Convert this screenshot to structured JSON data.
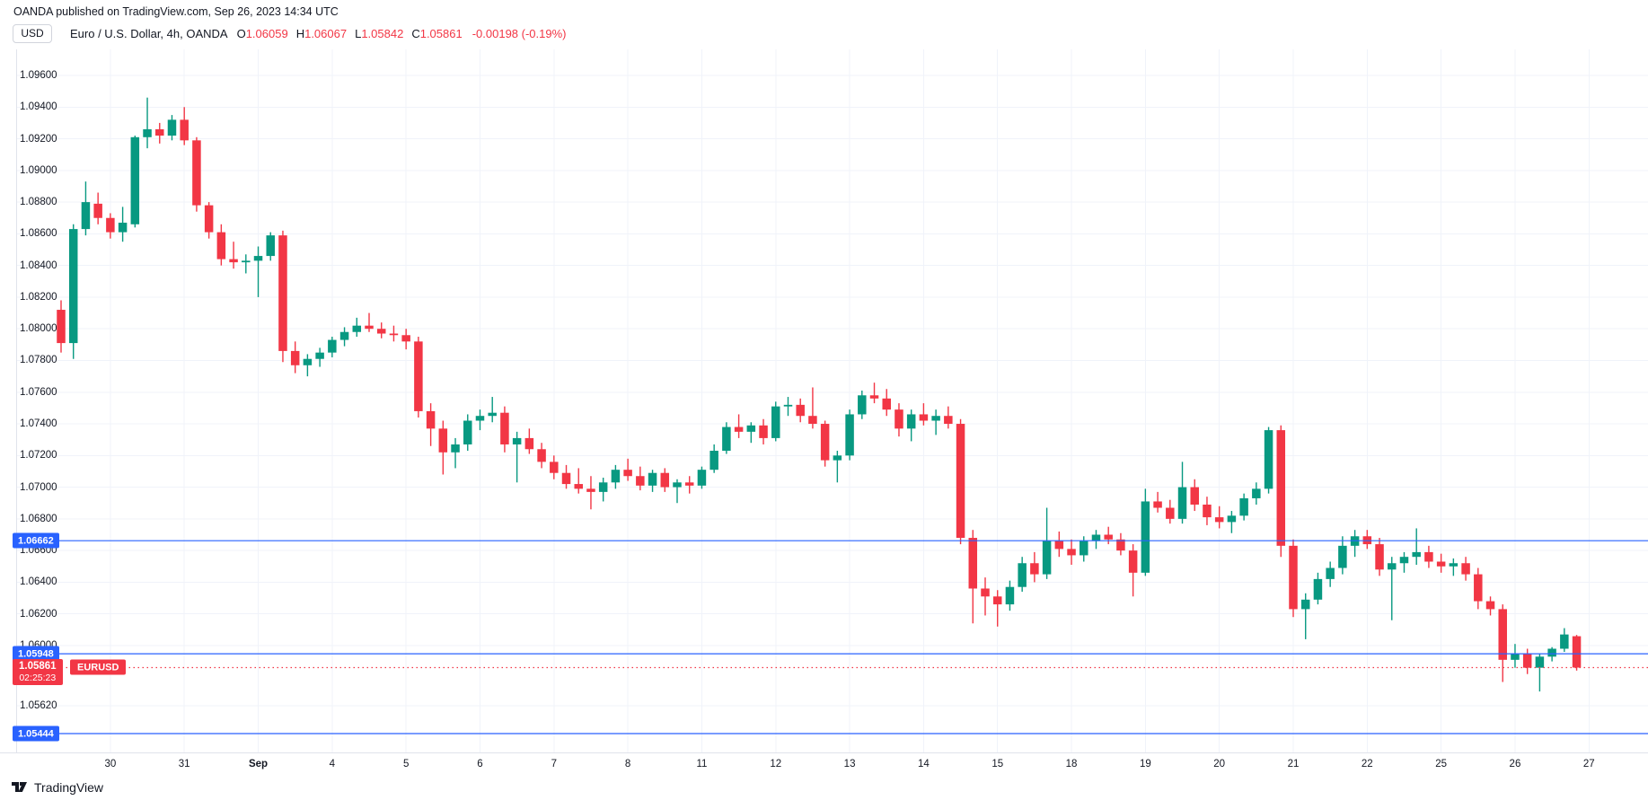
{
  "header": {
    "publisher_note": "OANDA published on TradingView.com, Sep 26, 2023 14:34 UTC"
  },
  "legend": {
    "currency_button": "USD",
    "title": "Euro / U.S. Dollar, 4h, OANDA",
    "ohlc": [
      {
        "k": "O",
        "v": "1.06059"
      },
      {
        "k": "H",
        "v": "1.06067"
      },
      {
        "k": "L",
        "v": "1.05842"
      },
      {
        "k": "C",
        "v": "1.05861"
      }
    ],
    "change": "-0.00198 (-0.19%)"
  },
  "colors": {
    "up": "#089981",
    "down": "#f23645",
    "level_line": "#2962ff",
    "last_price": "#f23645",
    "grid": "#f0f3fa",
    "separator": "#e0e3eb",
    "text": "#131722"
  },
  "price_scale": {
    "ticks": [
      "1.09600",
      "1.09400",
      "1.09200",
      "1.09000",
      "1.08800",
      "1.08600",
      "1.08400",
      "1.08200",
      "1.08000",
      "1.07800",
      "1.07600",
      "1.07400",
      "1.07200",
      "1.07000",
      "1.06800",
      "1.06600",
      "1.06400",
      "1.06200",
      "1.06000",
      "1.05620"
    ]
  },
  "time_scale": {
    "labels": [
      {
        "text": "30",
        "index": 4
      },
      {
        "text": "31",
        "index": 10
      },
      {
        "text": "Sep",
        "index": 16,
        "bold": true
      },
      {
        "text": "4",
        "index": 22
      },
      {
        "text": "5",
        "index": 28
      },
      {
        "text": "6",
        "index": 34
      },
      {
        "text": "7",
        "index": 40
      },
      {
        "text": "8",
        "index": 46
      },
      {
        "text": "11",
        "index": 52
      },
      {
        "text": "12",
        "index": 58
      },
      {
        "text": "13",
        "index": 64
      },
      {
        "text": "14",
        "index": 70
      },
      {
        "text": "15",
        "index": 76
      },
      {
        "text": "18",
        "index": 82
      },
      {
        "text": "19",
        "index": 88
      },
      {
        "text": "20",
        "index": 94
      },
      {
        "text": "21",
        "index": 100
      },
      {
        "text": "22",
        "index": 106
      },
      {
        "text": "25",
        "index": 112
      },
      {
        "text": "26",
        "index": 118
      },
      {
        "text": "27",
        "index": 124
      }
    ]
  },
  "levels": {
    "blue_lines": [
      {
        "price": 1.06662,
        "label": "1.06662"
      },
      {
        "price": 1.05948,
        "label": "1.05948"
      },
      {
        "price": 1.05444,
        "label": "1.05444"
      }
    ],
    "last_price": {
      "price": 1.05861,
      "label": "1.05861",
      "countdown": "02:25:23",
      "symbol_tag": "EURUSD"
    }
  },
  "chart_data": {
    "type": "candlestick",
    "symbol": "EURUSD",
    "title": "Euro / U.S. Dollar",
    "timeframe": "4h",
    "exchange": "OANDA",
    "ylim": [
      1.0532,
      1.0974
    ],
    "grid": true,
    "candles_ohlc": [
      [
        1.0812,
        1.0818,
        1.0785,
        1.0791
      ],
      [
        1.0791,
        1.0866,
        1.0781,
        1.0863
      ],
      [
        1.0863,
        1.0893,
        1.0859,
        1.088
      ],
      [
        1.0879,
        1.0886,
        1.0866,
        1.087
      ],
      [
        1.087,
        1.0873,
        1.0857,
        1.0861
      ],
      [
        1.0861,
        1.0877,
        1.0855,
        1.0867
      ],
      [
        1.0866,
        1.0922,
        1.0864,
        1.0921
      ],
      [
        1.0921,
        1.0946,
        1.0914,
        1.0926
      ],
      [
        1.0926,
        1.093,
        1.0917,
        1.0922
      ],
      [
        1.0922,
        1.0935,
        1.0919,
        1.0932
      ],
      [
        1.0932,
        1.094,
        1.0916,
        1.0919
      ],
      [
        1.0919,
        1.0921,
        1.0874,
        1.0878
      ],
      [
        1.0878,
        1.088,
        1.0857,
        1.0861
      ],
      [
        1.0861,
        1.0866,
        1.084,
        1.0844
      ],
      [
        1.0844,
        1.0855,
        1.0838,
        1.0842
      ],
      [
        1.0842,
        1.0847,
        1.0835,
        1.0843
      ],
      [
        1.0843,
        1.0852,
        1.082,
        1.0846
      ],
      [
        1.0846,
        1.0861,
        1.0843,
        1.0859
      ],
      [
        1.0859,
        1.0862,
        1.0779,
        1.0786
      ],
      [
        1.0786,
        1.0792,
        1.0772,
        1.0777
      ],
      [
        1.0777,
        1.0784,
        1.077,
        1.0781
      ],
      [
        1.0781,
        1.0788,
        1.0776,
        1.0785
      ],
      [
        1.0785,
        1.0795,
        1.0782,
        1.0793
      ],
      [
        1.0793,
        1.0801,
        1.0789,
        1.0798
      ],
      [
        1.0798,
        1.0807,
        1.0795,
        1.0802
      ],
      [
        1.0802,
        1.081,
        1.0798,
        1.08
      ],
      [
        1.08,
        1.0804,
        1.0794,
        1.0797
      ],
      [
        1.0797,
        1.0802,
        1.0792,
        1.0796
      ],
      [
        1.0796,
        1.08,
        1.0787,
        1.0792
      ],
      [
        1.0792,
        1.0795,
        1.0744,
        1.0748
      ],
      [
        1.0748,
        1.0753,
        1.0726,
        1.0737
      ],
      [
        1.0737,
        1.0742,
        1.0708,
        1.0722
      ],
      [
        1.0722,
        1.0731,
        1.0712,
        1.0727
      ],
      [
        1.0727,
        1.0746,
        1.0723,
        1.0742
      ],
      [
        1.0742,
        1.0749,
        1.0736,
        1.0745
      ],
      [
        1.0745,
        1.0757,
        1.0741,
        1.0747
      ],
      [
        1.0747,
        1.0751,
        1.0722,
        1.0727
      ],
      [
        1.0727,
        1.0735,
        1.0703,
        1.0731
      ],
      [
        1.0731,
        1.0737,
        1.0721,
        1.0724
      ],
      [
        1.0724,
        1.0728,
        1.0712,
        1.0716
      ],
      [
        1.0716,
        1.072,
        1.0705,
        1.0709
      ],
      [
        1.0709,
        1.0714,
        1.0699,
        1.0702
      ],
      [
        1.0702,
        1.0712,
        1.0696,
        1.0699
      ],
      [
        1.0699,
        1.0707,
        1.0686,
        1.0697
      ],
      [
        1.0697,
        1.0706,
        1.0691,
        1.0703
      ],
      [
        1.0703,
        1.0714,
        1.0699,
        1.0711
      ],
      [
        1.0711,
        1.0718,
        1.0704,
        1.0707
      ],
      [
        1.0707,
        1.0713,
        1.0698,
        1.0701
      ],
      [
        1.0701,
        1.0711,
        1.0697,
        1.0709
      ],
      [
        1.0709,
        1.0712,
        1.0697,
        1.07
      ],
      [
        1.07,
        1.0705,
        1.069,
        1.0703
      ],
      [
        1.0703,
        1.0707,
        1.0696,
        1.0701
      ],
      [
        1.0701,
        1.0713,
        1.0699,
        1.0711
      ],
      [
        1.0711,
        1.0727,
        1.0709,
        1.0723
      ],
      [
        1.0723,
        1.0741,
        1.0721,
        1.0738
      ],
      [
        1.0738,
        1.0746,
        1.0731,
        1.0735
      ],
      [
        1.0735,
        1.0741,
        1.0728,
        1.0739
      ],
      [
        1.0739,
        1.0743,
        1.0727,
        1.0731
      ],
      [
        1.0731,
        1.0754,
        1.0729,
        1.0751
      ],
      [
        1.0751,
        1.0757,
        1.0745,
        1.0752
      ],
      [
        1.0752,
        1.0756,
        1.0741,
        1.0745
      ],
      [
        1.0745,
        1.0763,
        1.0737,
        1.074
      ],
      [
        1.074,
        1.0742,
        1.0713,
        1.0717
      ],
      [
        1.0717,
        1.0723,
        1.0703,
        1.072
      ],
      [
        1.072,
        1.0749,
        1.0717,
        1.0746
      ],
      [
        1.0746,
        1.0761,
        1.0743,
        1.0758
      ],
      [
        1.0758,
        1.0766,
        1.0753,
        1.0756
      ],
      [
        1.0756,
        1.0762,
        1.0745,
        1.0749
      ],
      [
        1.0749,
        1.0753,
        1.0732,
        1.0737
      ],
      [
        1.0737,
        1.0749,
        1.0729,
        1.0746
      ],
      [
        1.0746,
        1.0753,
        1.0739,
        1.0742
      ],
      [
        1.0742,
        1.0749,
        1.0733,
        1.0745
      ],
      [
        1.0745,
        1.0751,
        1.0737,
        1.074
      ],
      [
        1.074,
        1.0743,
        1.0664,
        1.0668
      ],
      [
        1.0668,
        1.0673,
        1.0614,
        1.0636
      ],
      [
        1.0636,
        1.0643,
        1.0619,
        1.0631
      ],
      [
        1.0631,
        1.0635,
        1.0612,
        1.0626
      ],
      [
        1.0626,
        1.0641,
        1.0622,
        1.0637
      ],
      [
        1.0637,
        1.0656,
        1.0634,
        1.0652
      ],
      [
        1.0652,
        1.0659,
        1.064,
        1.0645
      ],
      [
        1.0645,
        1.0687,
        1.0642,
        1.0666
      ],
      [
        1.0666,
        1.0672,
        1.0656,
        1.0661
      ],
      [
        1.0661,
        1.0667,
        1.0651,
        1.0657
      ],
      [
        1.0657,
        1.0669,
        1.0653,
        1.0666
      ],
      [
        1.0666,
        1.0673,
        1.0661,
        1.067
      ],
      [
        1.067,
        1.0675,
        1.0664,
        1.0667
      ],
      [
        1.0667,
        1.0671,
        1.0657,
        1.066
      ],
      [
        1.066,
        1.0664,
        1.0631,
        1.0646
      ],
      [
        1.0646,
        1.0699,
        1.0644,
        1.0691
      ],
      [
        1.0691,
        1.0697,
        1.0684,
        1.0687
      ],
      [
        1.0687,
        1.0692,
        1.0677,
        1.068
      ],
      [
        1.068,
        1.0716,
        1.0677,
        1.07
      ],
      [
        1.07,
        1.0705,
        1.0685,
        1.0689
      ],
      [
        1.0689,
        1.0694,
        1.0676,
        1.0681
      ],
      [
        1.0681,
        1.0688,
        1.0674,
        1.0678
      ],
      [
        1.0678,
        1.0685,
        1.0671,
        1.0682
      ],
      [
        1.0682,
        1.0696,
        1.0679,
        1.0693
      ],
      [
        1.0693,
        1.0703,
        1.0689,
        1.0699
      ],
      [
        1.0699,
        1.0738,
        1.0696,
        1.0736
      ],
      [
        1.0736,
        1.0739,
        1.0656,
        1.0663
      ],
      [
        1.0663,
        1.0667,
        1.0618,
        1.0623
      ],
      [
        1.0623,
        1.0633,
        1.0604,
        1.0629
      ],
      [
        1.0629,
        1.0646,
        1.0626,
        1.0642
      ],
      [
        1.0642,
        1.0653,
        1.0637,
        1.0649
      ],
      [
        1.0649,
        1.0669,
        1.0645,
        1.0663
      ],
      [
        1.0663,
        1.0673,
        1.0656,
        1.0669
      ],
      [
        1.0669,
        1.0673,
        1.0661,
        1.0664
      ],
      [
        1.0664,
        1.0668,
        1.0644,
        1.0648
      ],
      [
        1.0648,
        1.0656,
        1.0616,
        1.0652
      ],
      [
        1.0652,
        1.0659,
        1.0646,
        1.0656
      ],
      [
        1.0656,
        1.0674,
        1.0651,
        1.0659
      ],
      [
        1.0659,
        1.0663,
        1.0649,
        1.0653
      ],
      [
        1.0653,
        1.0658,
        1.0646,
        1.065
      ],
      [
        1.065,
        1.0655,
        1.0644,
        1.0652
      ],
      [
        1.0652,
        1.0656,
        1.0641,
        1.0645
      ],
      [
        1.0645,
        1.0649,
        1.0623,
        1.0628
      ],
      [
        1.0628,
        1.0631,
        1.0619,
        1.0623
      ],
      [
        1.0623,
        1.0626,
        1.0577,
        1.0591
      ],
      [
        1.0591,
        1.0601,
        1.0586,
        1.0595
      ],
      [
        1.0595,
        1.0598,
        1.0582,
        1.0586
      ],
      [
        1.0586,
        1.0595,
        1.0571,
        1.0593
      ],
      [
        1.0593,
        1.0599,
        1.059,
        1.0598
      ],
      [
        1.0598,
        1.0611,
        1.0596,
        1.0607
      ],
      [
        1.06059,
        1.06067,
        1.05842,
        1.05861
      ]
    ],
    "day_start_indices": {
      "30": 4,
      "31": 10,
      "Sep": 16,
      "4": 22,
      "5": 28,
      "6": 34,
      "7": 40,
      "8": 46,
      "11": 52,
      "12": 58,
      "13": 64,
      "14": 70,
      "15": 76,
      "18": 82,
      "19": 88,
      "20": 94,
      "21": 100,
      "22": 106,
      "25": 112,
      "26": 118
    }
  },
  "footer": {
    "brand": "TradingView"
  }
}
